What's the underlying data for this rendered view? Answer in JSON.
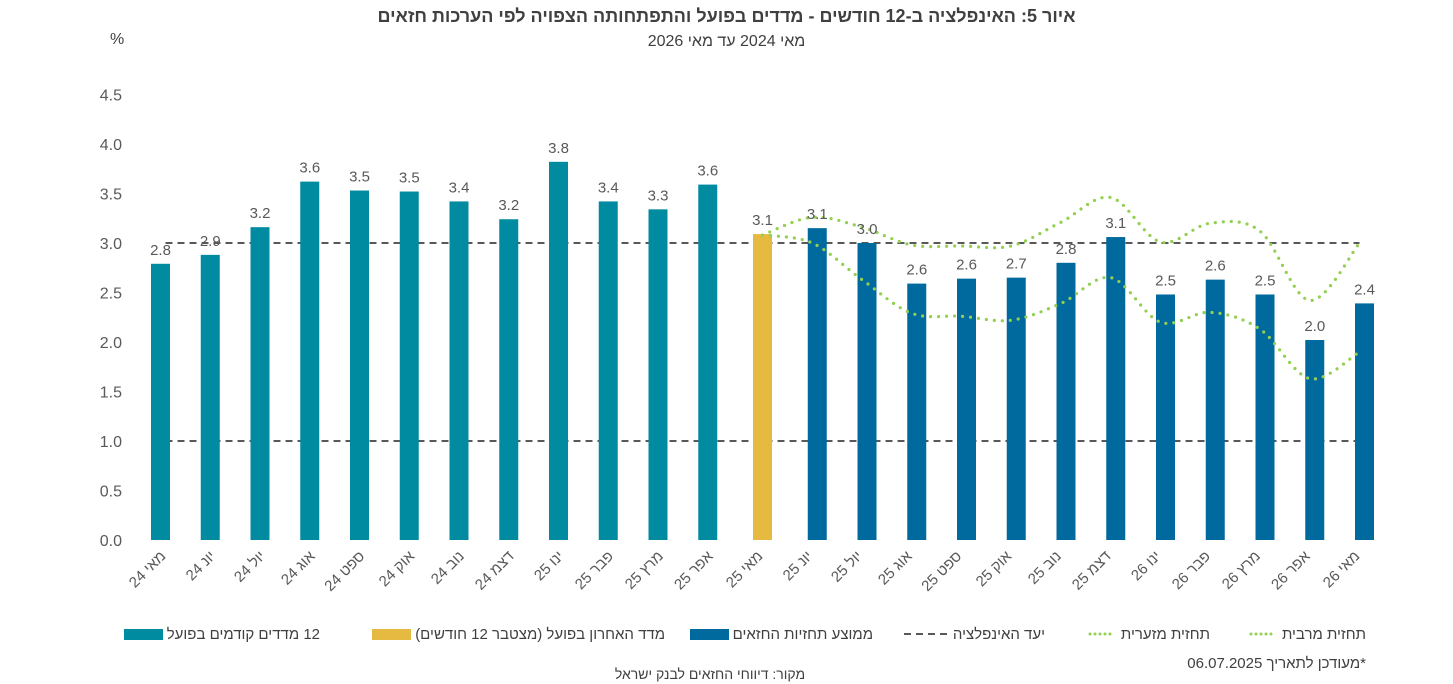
{
  "chart_data": {
    "type": "bar",
    "title": "איור 5: האינפלציה ב-12 חודשים - מדדים בפועל והתפתחותה הצפויה לפי הערכות חזאים",
    "subtitle": "מאי 2024 עד מאי 2026",
    "xlabel": "",
    "ylabel": "%",
    "ylim": [
      0,
      4.5
    ],
    "yticks": [
      "0.0",
      "0.5",
      "1.0",
      "1.5",
      "2.0",
      "2.5",
      "3.0",
      "3.5",
      "4.0",
      "4.5"
    ],
    "grid": false,
    "legend_position": "bottom",
    "categories": [
      "מאי 24",
      "יונ 24",
      "יול 24",
      "אוג 24",
      "ספט 24",
      "אוק 24",
      "נוב 24",
      "דצמ 24",
      "ינו 25",
      "פבר 25",
      "מרץ 25",
      "אפר 25",
      "מאי 25",
      "יונ 25",
      "יול 25",
      "אוג 25",
      "ספט 25",
      "אוק 25",
      "נוב 25",
      "דצמ 25",
      "ינו 26",
      "פבר 26",
      "מרץ 26",
      "אפר 26",
      "מאי 26"
    ],
    "data_labels": [
      "2.8",
      "2.9",
      "3.2",
      "3.6",
      "3.5",
      "3.5",
      "3.4",
      "3.2",
      "3.8",
      "3.4",
      "3.3",
      "3.6",
      "3.1",
      "3.1",
      "3.0",
      "2.6",
      "2.6",
      "2.7",
      "2.8",
      "3.1",
      "2.5",
      "2.6",
      "2.5",
      "2.0",
      "2.4"
    ],
    "series": [
      {
        "name": "12 מדדים קודמים בפועל",
        "type": "bar",
        "color": "#008BA0",
        "values": [
          2.79,
          2.88,
          3.16,
          3.62,
          3.53,
          3.52,
          3.42,
          3.24,
          3.82,
          3.42,
          3.34,
          3.59,
          null,
          null,
          null,
          null,
          null,
          null,
          null,
          null,
          null,
          null,
          null,
          null,
          null
        ]
      },
      {
        "name": "מדד האחרון בפועל (מצטבר 12 חודשים)",
        "type": "bar",
        "color": "#E6BA40",
        "values": [
          null,
          null,
          null,
          null,
          null,
          null,
          null,
          null,
          null,
          null,
          null,
          null,
          3.09,
          null,
          null,
          null,
          null,
          null,
          null,
          null,
          null,
          null,
          null,
          null,
          null
        ]
      },
      {
        "name": "ממוצע תחזיות החזאים",
        "type": "bar",
        "color": "#006A9E",
        "values": [
          null,
          null,
          null,
          null,
          null,
          null,
          null,
          null,
          null,
          null,
          null,
          null,
          null,
          3.15,
          3.0,
          2.59,
          2.64,
          2.65,
          2.8,
          3.06,
          2.48,
          2.63,
          2.48,
          2.02,
          2.39
        ]
      },
      {
        "name": "יעד האינפלציה",
        "type": "line",
        "style": "dashed",
        "color": "#595959",
        "levels": [
          3.0,
          1.0
        ]
      },
      {
        "name": "תחזית מזערית",
        "type": "line",
        "style": "dotted",
        "color": "#92D050",
        "values": [
          null,
          null,
          null,
          null,
          null,
          null,
          null,
          null,
          null,
          null,
          null,
          null,
          3.08,
          3.0,
          2.63,
          2.29,
          2.26,
          2.22,
          2.39,
          2.65,
          2.2,
          2.3,
          2.13,
          1.63,
          1.9
        ]
      },
      {
        "name": "תחזית מרבית",
        "type": "line",
        "style": "dotted",
        "color": "#92D050",
        "values": [
          null,
          null,
          null,
          null,
          null,
          null,
          null,
          null,
          null,
          null,
          null,
          null,
          3.08,
          3.26,
          3.16,
          2.98,
          2.97,
          2.97,
          3.21,
          3.46,
          3.01,
          3.2,
          3.12,
          2.42,
          3.0
        ]
      }
    ]
  },
  "footer": {
    "source": "מקור: דיווחי החזאים לבנק ישראל",
    "updated": "*מעודכן לתאריך 06.07.2025"
  }
}
